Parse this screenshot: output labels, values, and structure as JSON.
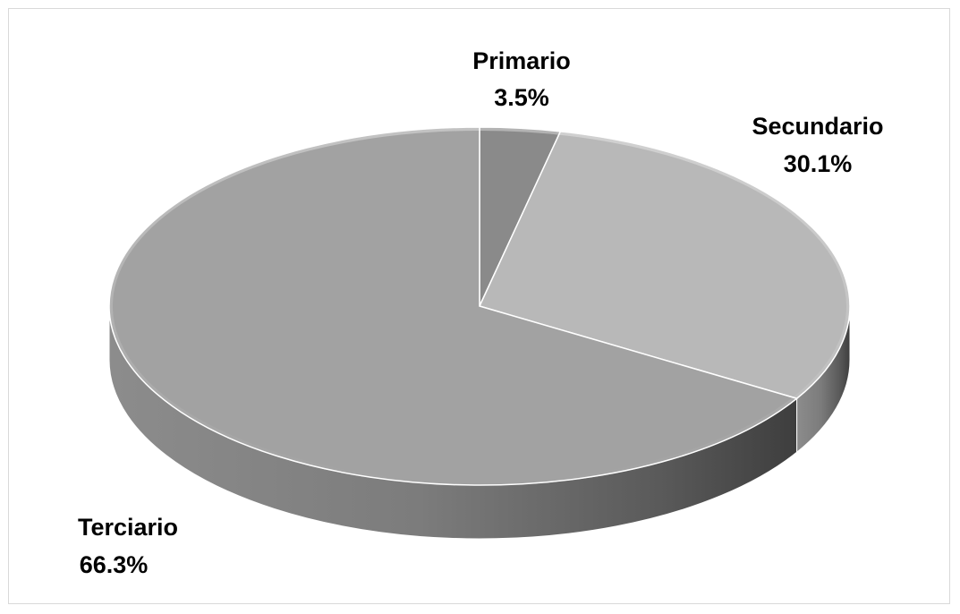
{
  "chart_data": {
    "type": "pie",
    "title": "",
    "start_angle": "12 o'clock, clockwise",
    "style": "3D tilted pie",
    "slices": [
      {
        "label": "Primario",
        "value": 3.5,
        "display": "3.5%",
        "color": "#8a8a8a",
        "side_color": "#6e6e6e"
      },
      {
        "label": "Secundario",
        "value": 30.1,
        "display": "30.1%",
        "color": "#b8b8b8",
        "side_color": "#8c8c8c"
      },
      {
        "label": "Terciario",
        "value": 66.3,
        "display": "66.3%",
        "color": "#a2a2a2",
        "side_color": "#7a7a7a"
      }
    ],
    "legend": "none"
  }
}
